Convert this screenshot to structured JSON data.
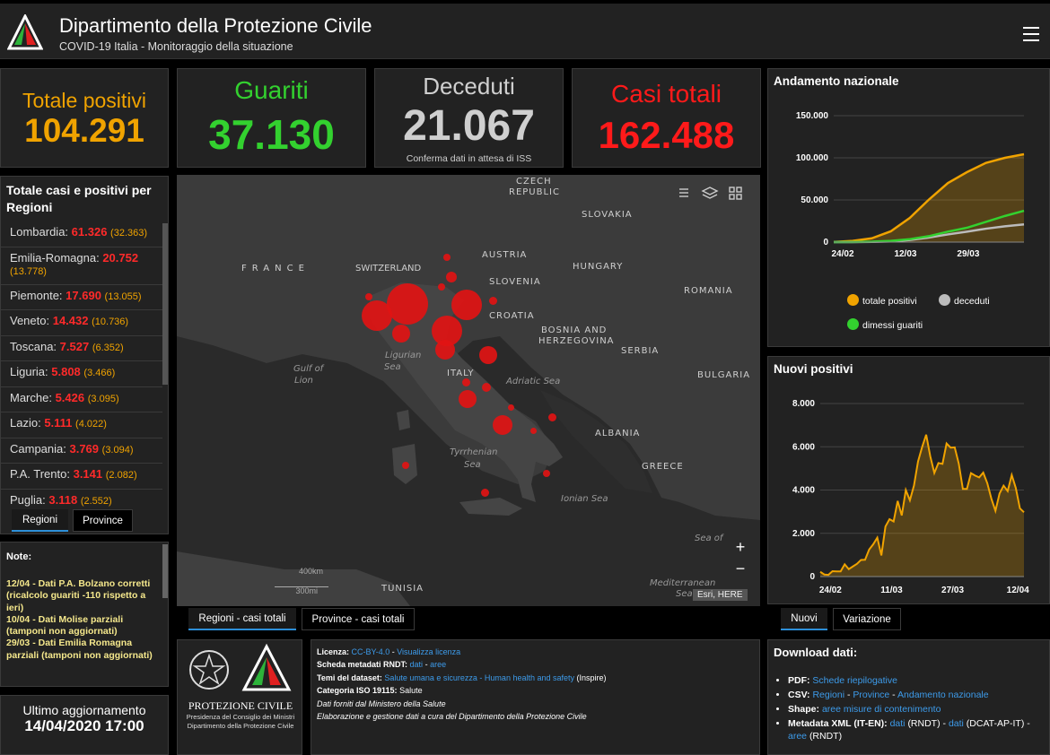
{
  "header": {
    "title": "Dipartimento della Protezione Civile",
    "subtitle": "COVID-19 Italia - Monitoraggio della situazione"
  },
  "kpis": {
    "positivi": {
      "label": "Totale positivi",
      "value": "104.291",
      "color": "#f0a300"
    },
    "guariti": {
      "label": "Guariti",
      "value": "37.130",
      "color": "#33d12f"
    },
    "deceduti": {
      "label": "Deceduti",
      "value": "21.067",
      "note": "Conferma dati in attesa di ISS",
      "color": "#cfcfcf"
    },
    "casi": {
      "label": "Casi totali",
      "value": "162.488",
      "color": "#ff1a1a"
    }
  },
  "regions": {
    "title": "Totale casi e positivi per Regioni",
    "items": [
      {
        "name": "Lombardia: ",
        "total": "61.326",
        "positive": "(32.363)"
      },
      {
        "name": "Emilia-Romagna: ",
        "total": "20.752",
        "positive": "(13.778)"
      },
      {
        "name": "Piemonte: ",
        "total": "17.690",
        "positive": "(13.055)"
      },
      {
        "name": "Veneto: ",
        "total": "14.432",
        "positive": "(10.736)"
      },
      {
        "name": "Toscana: ",
        "total": "7.527",
        "positive": "(6.352)"
      },
      {
        "name": "Liguria: ",
        "total": "5.808",
        "positive": "(3.466)"
      },
      {
        "name": "Marche: ",
        "total": "5.426",
        "positive": "(3.095)"
      },
      {
        "name": "Lazio: ",
        "total": "5.111",
        "positive": "(4.022)"
      },
      {
        "name": "Campania: ",
        "total": "3.769",
        "positive": "(3.094)"
      },
      {
        "name": "P.A. Trento: ",
        "total": "3.141",
        "positive": "(2.082)"
      },
      {
        "name": "Puglia: ",
        "total": "3.118",
        "positive": "(2.552)"
      }
    ],
    "tabs": [
      "Regioni",
      "Province"
    ]
  },
  "notes": {
    "title": "Note:",
    "lines": [
      "12/04 - Dati P.A. Bolzano corretti (ricalcolo guariti -110 rispetto a ieri)",
      "10/04 - Dati  Molise parziali (tamponi non aggiornati)",
      "29/03 - Dati  Emilia Romagna parziali (tamponi non aggiornati)"
    ]
  },
  "map": {
    "labels": {
      "czech": "CZECH",
      "republic": "REPUBLIC",
      "slovakia": "SLOVAKIA",
      "austria": "AUSTRIA",
      "hungary": "HUNGARY",
      "france": "FRANCE",
      "switzerland": "SWITZERLAND",
      "slovenia": "SLOVENIA",
      "croatia": "CROATIA",
      "romania": "ROMANIA",
      "bosnia1": "BOSNIA AND",
      "bosnia2": "HERZEGOVINA",
      "serbia": "SERBIA",
      "bulgaria": "BULGARIA",
      "italy": "ITALY",
      "albania": "ALBANIA",
      "greece": "GREECE",
      "tunisia": "TUNISIA",
      "ligurian1": "Ligurian",
      "ligurian2": "Sea",
      "gulf1": "Gulf of",
      "gulf2": "Lion",
      "adriatic": "Adriatic Sea",
      "tyrrhenian1": "Tyrrhenian",
      "tyrrhenian2": "Sea",
      "ionian": "Ionian Sea",
      "seaof": "Sea of",
      "med1": "Mediterranean",
      "med2": "Sea",
      "scale_km": "400km",
      "scale_mi": "300mi",
      "attribution": "Esri, HERE"
    },
    "tabs": [
      "Regioni - casi totali",
      "Province - casi totali"
    ]
  },
  "chart_data": [
    {
      "type": "area",
      "title": "Andamento nazionale",
      "x_ticks": [
        "24/02",
        "12/03",
        "29/03"
      ],
      "y_ticks": [
        "0",
        "50.000",
        "100.000",
        "150.000"
      ],
      "ylim": [
        0,
        150000
      ],
      "x": [
        0,
        5,
        10,
        15,
        20,
        25,
        30,
        35,
        40,
        45,
        50
      ],
      "series": [
        {
          "name": "totale positivi",
          "color": "#f0a300",
          "values": [
            200,
            1500,
            4500,
            12800,
            28700,
            50400,
            70000,
            83000,
            94000,
            100000,
            104291
          ]
        },
        {
          "name": "deceduti",
          "color": "#bbbbbb",
          "values": [
            10,
            50,
            200,
            800,
            2500,
            5500,
            9100,
            12400,
            15900,
            18800,
            21067
          ]
        },
        {
          "name": "dimessi guariti",
          "color": "#33d12f",
          "values": [
            0,
            100,
            500,
            1500,
            3500,
            7000,
            12400,
            17000,
            24000,
            31000,
            37130
          ]
        }
      ],
      "legend_position": "bottom"
    },
    {
      "type": "area",
      "title": "Nuovi positivi",
      "x_ticks": [
        "24/02",
        "11/03",
        "27/03",
        "12/04"
      ],
      "y_ticks": [
        "0",
        "2.000",
        "4.000",
        "6.000",
        "8.000"
      ],
      "ylim": [
        0,
        8000
      ],
      "series": [
        {
          "name": "nuovi positivi",
          "color": "#f0a300",
          "values": [
            221,
            93,
            78,
            250,
            238,
            240,
            566,
            342,
            466,
            587,
            769,
            778,
            1247,
            1492,
            1797,
            977,
            2313,
            2651,
            2547,
            3497,
            2823,
            4000,
            3526,
            4207,
            5322,
            5986,
            6557,
            5560,
            4789,
            5249,
            5210,
            6153,
            5959,
            5974,
            5217,
            4050,
            4053,
            4782,
            4668,
            4585,
            4805,
            4316,
            3599,
            3039,
            3836,
            4204,
            3951,
            4694,
            4092,
            3153,
            2972
          ]
        }
      ],
      "tabs": [
        "Nuovi",
        "Variazione"
      ]
    }
  ],
  "update": {
    "label": "Ultimo aggiornamento",
    "value": "14/04/2020 17:00"
  },
  "protezione": {
    "name": "PROTEZIONE CIVILE",
    "line1": "Presidenza del Consiglio dei Ministri",
    "line2": "Dipartimento della Protezione Civile"
  },
  "license": {
    "licenza_label": "Licenza:",
    "licenza_link": "CC-BY-4.0",
    "licenza_link2": "Visualizza licenza",
    "scheda_label": "Scheda metadati RNDT:",
    "scheda_link1": "dati",
    "scheda_link2": "aree",
    "temi_label": "Temi del dataset:",
    "temi_link": "Salute umana e sicurezza - Human health and safety",
    "temi_suffix": "(Inspire)",
    "categoria_label": "Categoria ISO 19115:",
    "categoria_value": "Salute",
    "line5": "Dati forniti dal Ministero della Salute",
    "line6": "Elaborazione e gestione dati a cura del Dipartimento della Protezione Civile"
  },
  "download": {
    "title": "Download dati:",
    "pdf_label": "PDF:",
    "pdf_link": "Schede riepilogative",
    "csv_label": "CSV:",
    "csv_link1": "Regioni",
    "csv_link2": "Province",
    "csv_link3": "Andamento nazionale",
    "shape_label": "Shape:",
    "shape_link": "aree misure di contenimento",
    "meta_label": "Metadata XML (IT-EN):",
    "meta_link1": "dati",
    "meta_text1": "(RNDT) -",
    "meta_link2": "dati",
    "meta_text2": "(DCAT-AP-IT) -",
    "meta_link3": "aree",
    "meta_text3": "(RNDT)"
  },
  "colors": {
    "accent_blue": "#2d8fd8",
    "link": "#3d9bea",
    "note_yellow": "#f5e88c"
  }
}
